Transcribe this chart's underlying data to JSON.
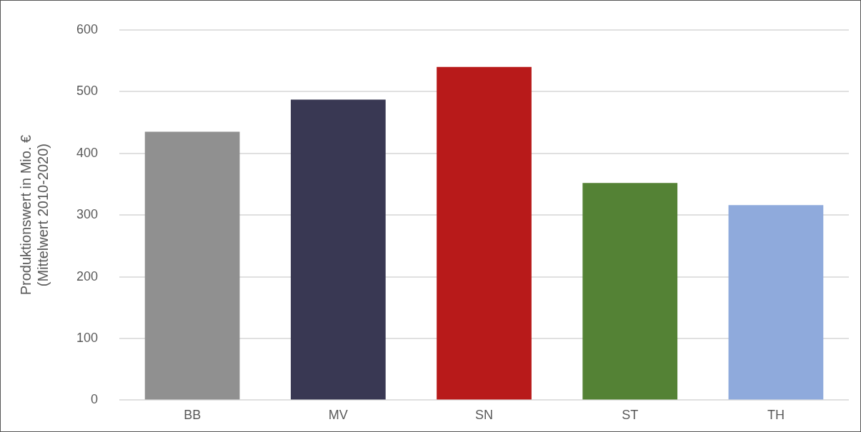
{
  "chart_data": {
    "type": "bar",
    "ylabel": "Produktionswert in Mio. € (Mittelwert 2010-2020)",
    "categories": [
      "BB",
      "MV",
      "SN",
      "ST",
      "TH"
    ],
    "values": [
      435,
      487,
      540,
      352,
      316
    ],
    "colors": [
      "#909090",
      "#393853",
      "#b81a1a",
      "#548235",
      "#8faadc"
    ],
    "ylim": [
      0,
      600
    ],
    "yticks": [
      0,
      100,
      200,
      300,
      400,
      500,
      600
    ],
    "grid": "y",
    "legend": false
  }
}
